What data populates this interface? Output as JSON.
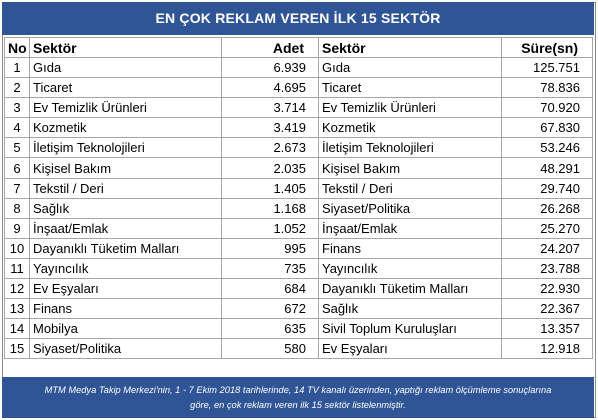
{
  "title": "EN ÇOK REKLAM VEREN İLK 15 SEKTÖR",
  "headers": {
    "no": "No",
    "sector_left": "Sektör",
    "count": "Adet",
    "sector_right": "Sektör",
    "duration": "Süre(sn)"
  },
  "rows": [
    {
      "no": "1",
      "sector_a": "Gıda",
      "count": "6.939",
      "sector_b": "Gıda",
      "duration": "125.751"
    },
    {
      "no": "2",
      "sector_a": "Ticaret",
      "count": "4.695",
      "sector_b": "Ticaret",
      "duration": "78.836"
    },
    {
      "no": "3",
      "sector_a": "Ev Temizlik Ürünleri",
      "count": "3.714",
      "sector_b": "Ev Temizlik Ürünleri",
      "duration": "70.920"
    },
    {
      "no": "4",
      "sector_a": "Kozmetik",
      "count": "3.419",
      "sector_b": "Kozmetik",
      "duration": "67.830"
    },
    {
      "no": "5",
      "sector_a": "İletişim Teknolojileri",
      "count": "2.673",
      "sector_b": "İletişim Teknolojileri",
      "duration": "53.246"
    },
    {
      "no": "6",
      "sector_a": "Kişisel Bakım",
      "count": "2.035",
      "sector_b": "Kişisel Bakım",
      "duration": "48.291"
    },
    {
      "no": "7",
      "sector_a": "Tekstil / Deri",
      "count": "1.405",
      "sector_b": "Tekstil / Deri",
      "duration": "29.740"
    },
    {
      "no": "8",
      "sector_a": "Sağlık",
      "count": "1.168",
      "sector_b": "Siyaset/Politika",
      "duration": "26.268"
    },
    {
      "no": "9",
      "sector_a": "İnşaat/Emlak",
      "count": "1.052",
      "sector_b": "İnşaat/Emlak",
      "duration": "25.270"
    },
    {
      "no": "10",
      "sector_a": "Dayanıklı Tüketim Malları",
      "count": "995",
      "sector_b": "Finans",
      "duration": "24.207"
    },
    {
      "no": "11",
      "sector_a": "Yayıncılık",
      "count": "735",
      "sector_b": "Yayıncılık",
      "duration": "23.788"
    },
    {
      "no": "12",
      "sector_a": "Ev Eşyaları",
      "count": "684",
      "sector_b": "Dayanıklı Tüketim Malları",
      "duration": "22.930"
    },
    {
      "no": "13",
      "sector_a": "Finans",
      "count": "672",
      "sector_b": "Sağlık",
      "duration": "22.367"
    },
    {
      "no": "14",
      "sector_a": "Mobilya",
      "count": "635",
      "sector_b": "Sivil Toplum Kuruluşları",
      "duration": "13.357"
    },
    {
      "no": "15",
      "sector_a": "Siyaset/Politika",
      "count": "580",
      "sector_b": "Ev Eşyaları",
      "duration": "12.918"
    }
  ],
  "footer": {
    "line1": "MTM Medya Takip Merkezi'nin, 1 - 7 Ekim 2018 tarihlerinde, 14 TV kanalı üzerinden,  yaptığı reklam ölçümleme sonuçlarına",
    "line2": "göre, en çok reklam veren ilk 15 sektör  listelenmiştir."
  },
  "colors": {
    "banner": "#2f5596",
    "banner_text": "#ffffff",
    "grid": "#a6a6a6"
  }
}
